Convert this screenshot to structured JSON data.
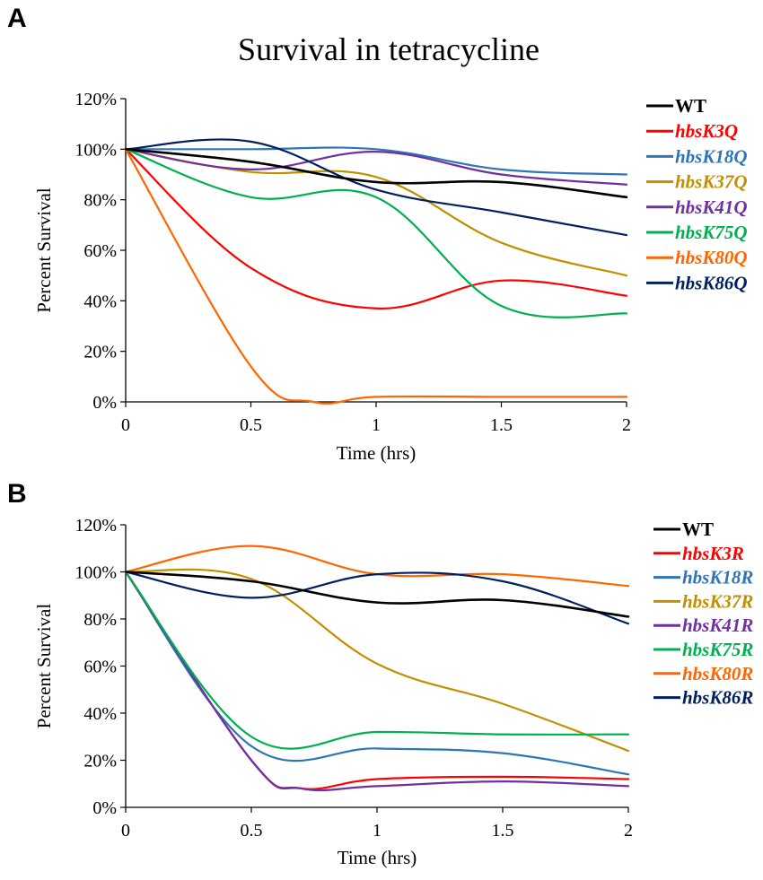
{
  "figure": {
    "title": "Survival in tetracycline",
    "panel_labels": [
      "A",
      "B"
    ]
  },
  "chart_data": [
    {
      "panel": "A",
      "type": "line",
      "title": "Survival in tetracycline",
      "xlabel": "Time (hrs)",
      "ylabel": "Percent Survival",
      "xlim": [
        0,
        2
      ],
      "ylim": [
        0,
        120
      ],
      "xticks": [
        0,
        0.5,
        1,
        1.5,
        2
      ],
      "xtick_labels": [
        "0",
        "0.5",
        "1",
        "1.5",
        "2"
      ],
      "yticks": [
        0,
        20,
        40,
        60,
        80,
        100,
        120
      ],
      "ytick_labels": [
        "0%",
        "20%",
        "40%",
        "60%",
        "80%",
        "100%",
        "120%"
      ],
      "grid": false,
      "legend_position": "right",
      "series": [
        {
          "name": "WT",
          "color": "#000000",
          "points": [
            [
              0,
              100
            ],
            [
              0.5,
              95
            ],
            [
              1,
              87
            ],
            [
              1.5,
              87
            ],
            [
              2,
              81
            ]
          ]
        },
        {
          "name": "hbsK3Q",
          "color": "#ff0000",
          "points": [
            [
              0,
              100
            ],
            [
              0.5,
              53
            ],
            [
              1,
              37
            ],
            [
              1.5,
              48
            ],
            [
              2,
              42
            ]
          ]
        },
        {
          "name": "hbsK18Q",
          "color": "#2e75b6",
          "points": [
            [
              0,
              100
            ],
            [
              0.5,
              100
            ],
            [
              1,
              100
            ],
            [
              1.5,
              92
            ],
            [
              2,
              90
            ]
          ]
        },
        {
          "name": "hbsK37Q",
          "color": "#bf9000",
          "points": [
            [
              0,
              100
            ],
            [
              0.5,
              91
            ],
            [
              1,
              89
            ],
            [
              1.5,
              63
            ],
            [
              2,
              50
            ]
          ]
        },
        {
          "name": "hbsK41Q",
          "color": "#7030a0",
          "points": [
            [
              0,
              100
            ],
            [
              0.5,
              92
            ],
            [
              1,
              99
            ],
            [
              1.5,
              90
            ],
            [
              2,
              86
            ]
          ]
        },
        {
          "name": "hbsK75Q",
          "color": "#00b050",
          "points": [
            [
              0,
              100
            ],
            [
              0.5,
              81
            ],
            [
              1,
              81
            ],
            [
              1.5,
              38
            ],
            [
              2,
              35
            ]
          ]
        },
        {
          "name": "hbsK80Q",
          "color": "#ff6600",
          "points": [
            [
              0,
              100
            ],
            [
              0.5,
              14
            ],
            [
              0.75,
              0
            ],
            [
              1,
              2
            ],
            [
              1.5,
              2
            ],
            [
              2,
              2
            ]
          ]
        },
        {
          "name": "hbsK86Q",
          "color": "#002060",
          "points": [
            [
              0,
              100
            ],
            [
              0.5,
              103
            ],
            [
              1,
              84
            ],
            [
              1.5,
              75
            ],
            [
              2,
              66
            ]
          ]
        }
      ]
    },
    {
      "panel": "B",
      "type": "line",
      "title": "",
      "xlabel": "Time (hrs)",
      "ylabel": "Percent Survival",
      "xlim": [
        0,
        2
      ],
      "ylim": [
        0,
        120
      ],
      "xticks": [
        0,
        0.5,
        1,
        1.5,
        2
      ],
      "xtick_labels": [
        "0",
        "0.5",
        "1",
        "1.5",
        "2"
      ],
      "yticks": [
        0,
        20,
        40,
        60,
        80,
        100,
        120
      ],
      "ytick_labels": [
        "0%",
        "20%",
        "40%",
        "60%",
        "80%",
        "100%",
        "120%"
      ],
      "grid": false,
      "legend_position": "right",
      "series": [
        {
          "name": "WT",
          "color": "#000000",
          "points": [
            [
              0,
              100
            ],
            [
              0.5,
              96
            ],
            [
              1,
              87
            ],
            [
              1.5,
              88
            ],
            [
              2,
              81
            ]
          ]
        },
        {
          "name": "hbsK3R",
          "color": "#ff0000",
          "points": [
            [
              0,
              100
            ],
            [
              0.5,
              20
            ],
            [
              0.7,
              8
            ],
            [
              1,
              12
            ],
            [
              1.5,
              13
            ],
            [
              2,
              12
            ]
          ]
        },
        {
          "name": "hbsK18R",
          "color": "#2e75b6",
          "points": [
            [
              0,
              100
            ],
            [
              0.5,
              26
            ],
            [
              1,
              25
            ],
            [
              1.5,
              23
            ],
            [
              2,
              14
            ]
          ]
        },
        {
          "name": "hbsK37R",
          "color": "#bf9000",
          "points": [
            [
              0,
              100
            ],
            [
              0.5,
              97
            ],
            [
              1,
              61
            ],
            [
              1.5,
              44
            ],
            [
              2,
              24
            ]
          ]
        },
        {
          "name": "hbsK41R",
          "color": "#7030a0",
          "points": [
            [
              0,
              100
            ],
            [
              0.5,
              20
            ],
            [
              0.7,
              8
            ],
            [
              1,
              9
            ],
            [
              1.5,
              11
            ],
            [
              2,
              9
            ]
          ]
        },
        {
          "name": "hbsK75R",
          "color": "#00b050",
          "points": [
            [
              0,
              100
            ],
            [
              0.5,
              30
            ],
            [
              1,
              32
            ],
            [
              1.5,
              31
            ],
            [
              2,
              31
            ]
          ]
        },
        {
          "name": "hbsK80R",
          "color": "#ff6600",
          "points": [
            [
              0,
              100
            ],
            [
              0.5,
              111
            ],
            [
              1,
              99
            ],
            [
              1.5,
              99
            ],
            [
              2,
              94
            ]
          ]
        },
        {
          "name": "hbsK86R",
          "color": "#002060",
          "points": [
            [
              0,
              100
            ],
            [
              0.5,
              89
            ],
            [
              1,
              99
            ],
            [
              1.5,
              96
            ],
            [
              2,
              78
            ]
          ]
        }
      ]
    }
  ]
}
